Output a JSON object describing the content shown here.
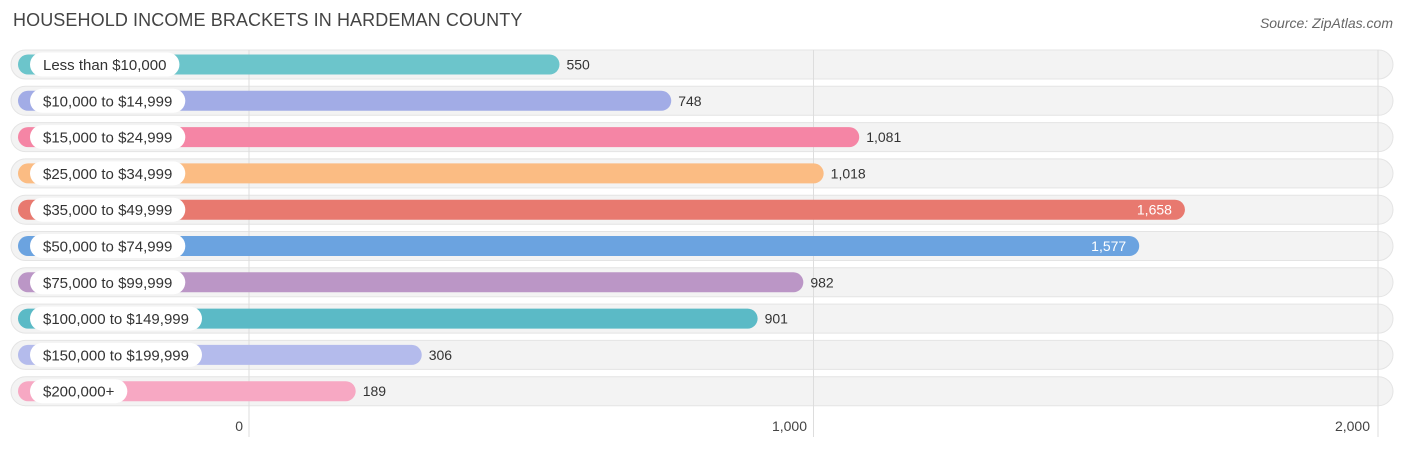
{
  "header": {
    "title": "HOUSEHOLD INCOME BRACKETS IN HARDEMAN COUNTY",
    "source": "Source: ZipAtlas.com"
  },
  "chart_data": {
    "type": "bar",
    "orientation": "horizontal",
    "title": "HOUSEHOLD INCOME BRACKETS IN HARDEMAN COUNTY",
    "xlabel": "",
    "ylabel": "",
    "xlim": [
      0,
      2000
    ],
    "grid": true,
    "categories": [
      "Less than $10,000",
      "$10,000 to $14,999",
      "$15,000 to $24,999",
      "$25,000 to $34,999",
      "$35,000 to $49,999",
      "$50,000 to $74,999",
      "$75,000 to $99,999",
      "$100,000 to $149,999",
      "$150,000 to $199,999",
      "$200,000+"
    ],
    "values": [
      550,
      748,
      1081,
      1018,
      1658,
      1577,
      982,
      901,
      306,
      189
    ],
    "value_labels": [
      "550",
      "748",
      "1,081",
      "1,018",
      "1,658",
      "1,577",
      "982",
      "901",
      "306",
      "189"
    ],
    "colors": [
      "#6cc5cb",
      "#a2ace6",
      "#f585a5",
      "#fbbc83",
      "#e8796f",
      "#6ba3e0",
      "#bb96c6",
      "#5bbac6",
      "#b4bbec",
      "#f7a8c3"
    ],
    "ticks": [
      {
        "value": 0,
        "label": "0"
      },
      {
        "value": 1000,
        "label": "1,000"
      },
      {
        "value": 2000,
        "label": "2,000"
      }
    ]
  }
}
